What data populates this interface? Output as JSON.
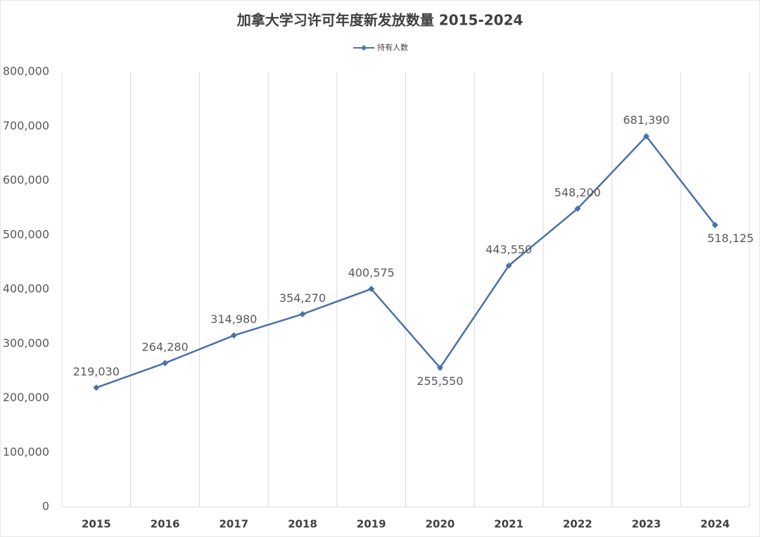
{
  "chart_data": {
    "type": "line",
    "title": "加拿大学习许可年度新发放数量 2015-2024",
    "categories": [
      "2015",
      "2016",
      "2017",
      "2018",
      "2019",
      "2020",
      "2021",
      "2022",
      "2023",
      "2024"
    ],
    "series": [
      {
        "name": "持有人数",
        "color": "#4a70aa",
        "values": [
          219030,
          264280,
          314980,
          354270,
          400575,
          255550,
          443550,
          548200,
          681390,
          518125
        ],
        "value_labels": [
          "219,030",
          "264,280",
          "314,980",
          "354,270",
          "400,575",
          "255,550",
          "443,550",
          "548,200",
          "681,390",
          "518,125"
        ]
      }
    ],
    "ylim": [
      0,
      800000
    ],
    "yticks": [
      0,
      {
        "value": 100000,
        "label": "100,000"
      },
      {
        "value": 200000,
        "label": "200,000"
      },
      {
        "value": 300000,
        "label": "300,000"
      },
      {
        "value": 400000,
        "label": "400,000"
      },
      {
        "value": 500000,
        "label": "500,000"
      },
      {
        "value": 600000,
        "label": "600,000"
      },
      {
        "value": 700000,
        "label": "700,000"
      },
      {
        "value": 800000,
        "label": "800,000"
      }
    ],
    "grid": true
  }
}
